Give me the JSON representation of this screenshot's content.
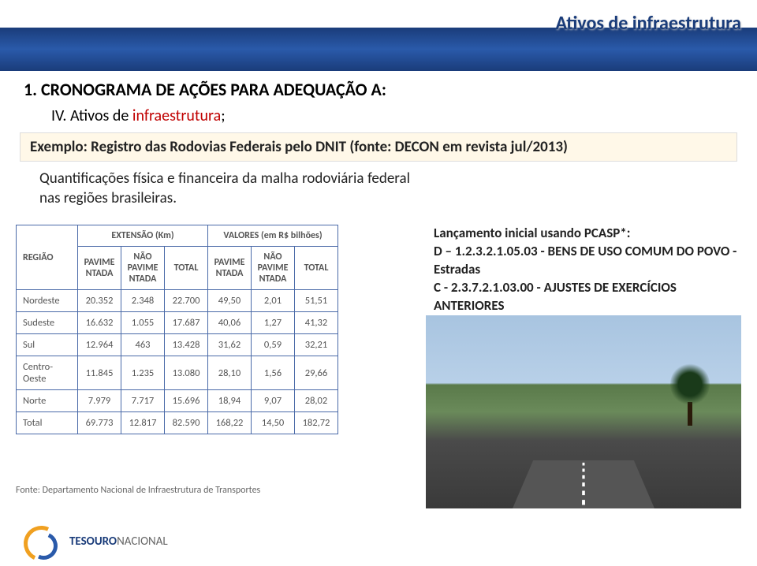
{
  "header": {
    "top_title": "Ativos de infraestrutura",
    "section_title": "1. CRONOGRAMA DE AÇÕES PARA ADEQUAÇÃO A:",
    "item_iv_prefix": "IV.  Ativos de ",
    "item_iv_highlight": "infraestrutura",
    "item_iv_suffix": ";"
  },
  "exemplo": "Exemplo: Registro das Rodovias Federais pelo DNIT (fonte: DECON em revista  jul/2013)",
  "quant_text": "Quantificações física e financeira da malha rodoviária federal nas regiões brasileiras.",
  "table": {
    "group_headers": {
      "regiao": "REGIÃO",
      "extensao": "EXTENSÃO (Km)",
      "valores": "VALORES (em R$ bilhões)"
    },
    "sub_headers": {
      "pav": "PAVIME NTADA",
      "npav": "NÃO PAVIME NTADA",
      "total": "TOTAL"
    },
    "rows": [
      {
        "regiao": "Nordeste",
        "e_pav": "20.352",
        "e_npav": "2.348",
        "e_tot": "22.700",
        "v_pav": "49,50",
        "v_npav": "2,01",
        "v_tot": "51,51"
      },
      {
        "regiao": "Sudeste",
        "e_pav": "16.632",
        "e_npav": "1.055",
        "e_tot": "17.687",
        "v_pav": "40,06",
        "v_npav": "1,27",
        "v_tot": "41,32"
      },
      {
        "regiao": "Sul",
        "e_pav": "12.964",
        "e_npav": "463",
        "e_tot": "13.428",
        "v_pav": "31,62",
        "v_npav": "0,59",
        "v_tot": "32,21"
      },
      {
        "regiao": "Centro-Oeste",
        "e_pav": "11.845",
        "e_npav": "1.235",
        "e_tot": "13.080",
        "v_pav": "28,10",
        "v_npav": "1,56",
        "v_tot": "29,66"
      },
      {
        "regiao": "Norte",
        "e_pav": "7.979",
        "e_npav": "7.717",
        "e_tot": "15.696",
        "v_pav": "18,94",
        "v_npav": "9,07",
        "v_tot": "28,02"
      },
      {
        "regiao": "Total",
        "e_pav": "69.773",
        "e_npav": "12.817",
        "e_tot": "82.590",
        "v_pav": "168,22",
        "v_npav": "14,50",
        "v_tot": "182,72"
      }
    ],
    "source": "Fonte: Departamento Nacional de Infraestrutura de Transportes"
  },
  "lancamento": {
    "l1": "Lançamento inicial usando PCASP*:",
    "l2": "D – 1.2.3.2.1.05.03 - BENS DE USO COMUM DO POVO - Estradas",
    "l3": "C -  2.3.7.2.1.03.00 - AJUSTES DE EXERCÍCIOS ANTERIORES"
  },
  "footer": {
    "tn_bold": "TESOURO",
    "tn_light": "NACIONAL"
  },
  "colors": {
    "header_band": "#1a3c7a",
    "highlight_red": "#c00000",
    "exemplo_bg": "#fff8e8",
    "table_border": "#4a6aa8"
  }
}
